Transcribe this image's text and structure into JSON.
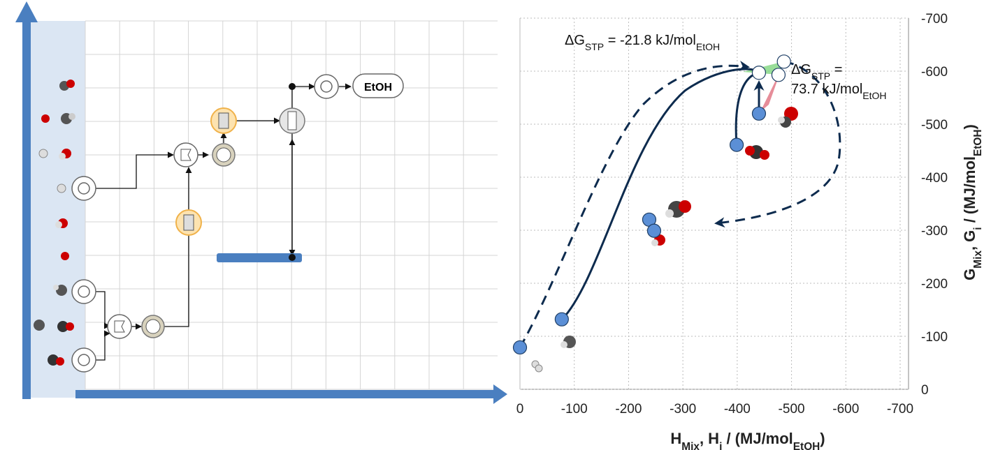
{
  "diagram": {
    "product_label": "EtOH"
  },
  "chart_data": {
    "type": "scatter",
    "xlabel": [
      "H",
      "Mix",
      ", H",
      "i",
      " / (MJ/mol",
      "EtOH",
      ")"
    ],
    "ylabel": [
      "G",
      "Mix",
      ", G",
      "i",
      " / (MJ/mol",
      "EtOH",
      ")"
    ],
    "annotations": [
      [
        "ΔG",
        "STP",
        " = -21.8 kJ/mol",
        "EtOH"
      ],
      [
        "ΔG",
        "STP",
        " ="
      ],
      [
        "73.7 kJ/mol",
        "EtOH"
      ]
    ],
    "xlim": [
      0,
      -700
    ],
    "ylim": [
      0,
      -700
    ],
    "xticks": [
      0,
      -100,
      -200,
      -300,
      -400,
      -500,
      -600,
      -700
    ],
    "yticks": [
      0,
      -100,
      -200,
      -300,
      -400,
      -500,
      -600,
      -700
    ],
    "grid": true,
    "series": [
      {
        "color": "#5b8fd6",
        "x": [
          0,
          -77,
          -399,
          -440,
          -238,
          -247
        ],
        "y": [
          -79,
          -132,
          -461,
          -520,
          -320,
          -299
        ]
      },
      {
        "color": "#ffffff",
        "x": [
          -440,
          -476,
          -486
        ],
        "y": [
          -597,
          -593,
          -618
        ]
      }
    ]
  }
}
